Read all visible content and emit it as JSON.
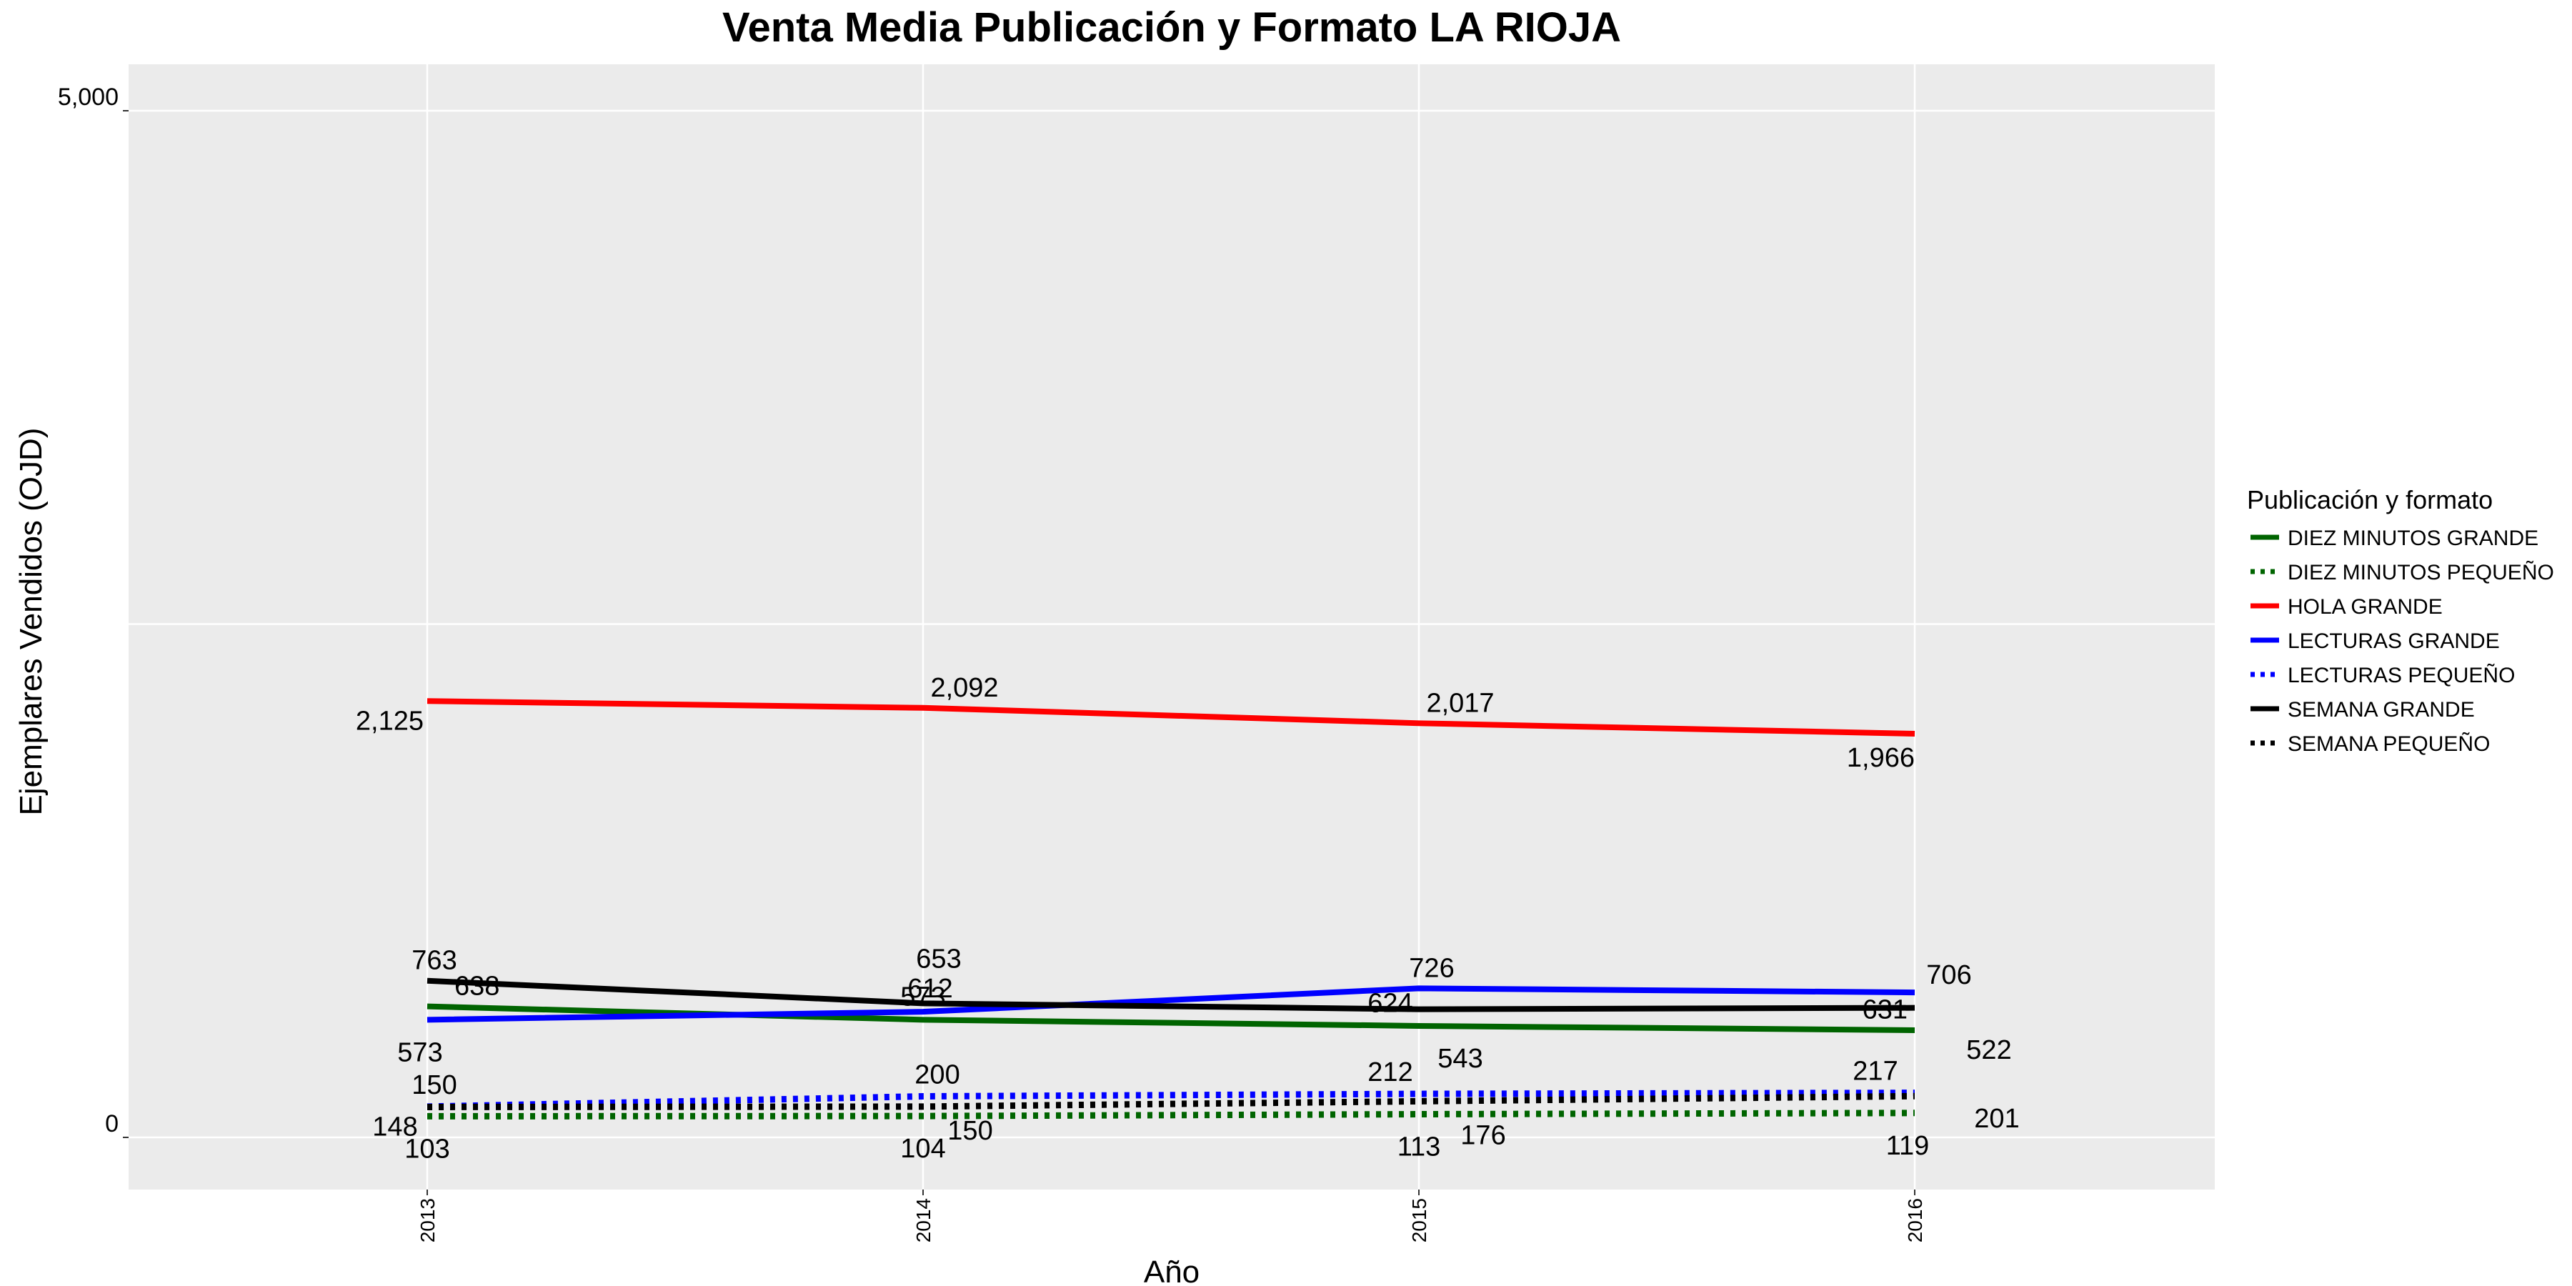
{
  "chart_data": {
    "type": "line",
    "title": "Venta Media Publicación y Formato  LA RIOJA",
    "xlabel": "Año",
    "ylabel": "Ejemplares Vendidos (OJD)",
    "x": [
      "2013",
      "2014",
      "2015",
      "2016"
    ],
    "ylim": [
      0,
      5000
    ],
    "y_ticks": [
      "0",
      "5,000"
    ],
    "y_tick_values": [
      0,
      5000
    ],
    "grid": true,
    "background": "#ebebeb",
    "legend": {
      "title": "Publicación y formato",
      "placement": "right"
    },
    "series": [
      {
        "name": "DIEZ MINUTOS GRANDE",
        "values": [
          638,
          573,
          543,
          522
        ],
        "labels": [
          "638",
          "573",
          "543",
          "522"
        ],
        "color": "#006400",
        "dash": "solid"
      },
      {
        "name": "DIEZ MINUTOS PEQUEÑO",
        "values": [
          103,
          104,
          113,
          119
        ],
        "labels": [
          "103",
          "104",
          "113",
          "119"
        ],
        "color": "#006400",
        "dash": "dotted"
      },
      {
        "name": "HOLA GRANDE",
        "values": [
          2125,
          2092,
          2017,
          1966
        ],
        "labels": [
          "2,125",
          "2,092",
          "2,017",
          "1,966"
        ],
        "color": "#ff0000",
        "dash": "solid"
      },
      {
        "name": "LECTURAS GRANDE",
        "values": [
          573,
          612,
          726,
          706
        ],
        "labels": [
          "573",
          "612",
          "726",
          "706"
        ],
        "color": "#0000ff",
        "dash": "solid"
      },
      {
        "name": "LECTURAS PEQUEÑO",
        "values": [
          150,
          200,
          212,
          217
        ],
        "labels": [
          "150",
          "200",
          "212",
          "217"
        ],
        "color": "#0000ff",
        "dash": "dotted"
      },
      {
        "name": "SEMANA GRANDE",
        "values": [
          763,
          653,
          624,
          631
        ],
        "labels": [
          "763",
          "653",
          "624",
          "631"
        ],
        "color": "#000000",
        "dash": "solid"
      },
      {
        "name": "SEMANA PEQUEÑO",
        "values": [
          148,
          150,
          176,
          201
        ],
        "labels": [
          "148",
          "150",
          "176",
          "201"
        ],
        "color": "#000000",
        "dash": "dotted"
      }
    ]
  }
}
